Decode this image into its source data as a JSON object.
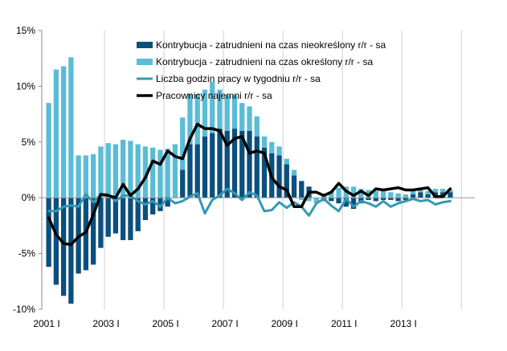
{
  "chart_data": {
    "type": "bar",
    "x_tick_labels": [
      "2001  I",
      "2003  I",
      "2005 I",
      "2007 I",
      "2009 I",
      "2011 I",
      "2013 I"
    ],
    "y_tick_labels": [
      "15%",
      "10%",
      "5%",
      "0%",
      "-5%",
      "-10%"
    ],
    "ylim": [
      -10,
      15
    ],
    "y_unit": "%",
    "grid": "vertical",
    "legend_position": "top-center",
    "series": [
      {
        "name": "Kontrybucja - zatrudnieni na czas nieokreślony r/r - sa",
        "kind": "bar",
        "color": "#0b4f7c",
        "values": [
          -6.2,
          -7.8,
          -8.8,
          -9.5,
          -6.8,
          -6.5,
          -6.0,
          -4.5,
          -3.5,
          -3.2,
          -3.8,
          -3.8,
          -3.0,
          -2.0,
          -1.5,
          -1.2,
          -0.8,
          0.0,
          2.5,
          4.8,
          4.8,
          5.5,
          5.8,
          6.2,
          6.0,
          6.2,
          6.0,
          6.0,
          5.5,
          4.5,
          4.0,
          3.8,
          3.0,
          2.0,
          1.5,
          1.0,
          0.0,
          -0.3,
          -0.3,
          -0.5,
          -0.8,
          -1.0,
          -0.5,
          -0.2,
          -0.3,
          -0.2,
          -0.2,
          -0.3,
          -0.2,
          0.3,
          0.5,
          0.3,
          0.5,
          0.5,
          0.5
        ]
      },
      {
        "name": "Kontrybucja - zatrudnieni na czas określony r/r - sa",
        "kind": "bar",
        "color": "#5bbcd6",
        "values": [
          8.5,
          11.5,
          11.8,
          12.6,
          3.8,
          3.8,
          3.9,
          4.6,
          4.9,
          4.8,
          5.2,
          5.1,
          4.8,
          4.6,
          4.5,
          4.3,
          4.4,
          4.8,
          4.7,
          4.5,
          4.5,
          4.2,
          4.6,
          3.5,
          3.2,
          3.0,
          2.5,
          2.2,
          1.8,
          1.0,
          1.0,
          0.8,
          0.5,
          0.5,
          -0.2,
          -0.3,
          -0.5,
          0.3,
          0.6,
          0.9,
          1.0,
          1.0,
          0.8,
          0.7,
          0.6,
          0.6,
          0.5,
          0.4,
          0.3,
          0.3,
          0.3,
          0.3,
          0.3,
          0.3,
          0.2
        ]
      },
      {
        "name": "Liczba godzin pracy w tygodniu r/r - sa",
        "kind": "line",
        "color": "#3399b5",
        "values": [
          -1.2,
          -1.2,
          -0.8,
          -0.7,
          -0.8,
          0.3,
          -0.4,
          0.3,
          0.3,
          -0.3,
          0.2,
          0.2,
          -0.3,
          -0.6,
          -0.3,
          -0.8,
          0.0,
          -0.5,
          -0.3,
          0.1,
          0.4,
          -1.4,
          -0.2,
          0.2,
          0.8,
          0.4,
          -0.2,
          0.5,
          0.2,
          -1.2,
          -1.1,
          -0.4,
          -0.9,
          -0.4,
          -0.8,
          -1.6,
          -0.5,
          -0.1,
          -0.7,
          -1.2,
          -0.1,
          -0.8,
          -0.3,
          -0.5,
          -0.8,
          -0.3,
          -0.8,
          -0.5,
          -0.3,
          -0.1,
          -0.3,
          -0.2,
          -0.6,
          -0.4,
          -0.3
        ]
      },
      {
        "name": "Pracownicy najemni r/r - sa",
        "kind": "line",
        "color": "#000000",
        "values": [
          -1.8,
          -3.3,
          -4.1,
          -4.2,
          -3.5,
          -3.1,
          -1.5,
          0.3,
          0.2,
          0.0,
          1.2,
          0.2,
          0.8,
          1.8,
          3.3,
          3.0,
          4.2,
          3.7,
          3.5,
          5.3,
          6.6,
          6.2,
          6.2,
          6.0,
          4.7,
          5.3,
          5.5,
          4.0,
          4.2,
          4.0,
          1.8,
          1.0,
          0.7,
          -0.8,
          -0.8,
          0.5,
          0.5,
          0.2,
          0.5,
          1.3,
          0.6,
          0.2,
          0.6,
          0.2,
          0.8,
          0.7,
          0.8,
          0.9,
          0.7,
          0.7,
          0.8,
          0.9,
          0.1,
          0.1,
          0.8
        ]
      }
    ]
  }
}
